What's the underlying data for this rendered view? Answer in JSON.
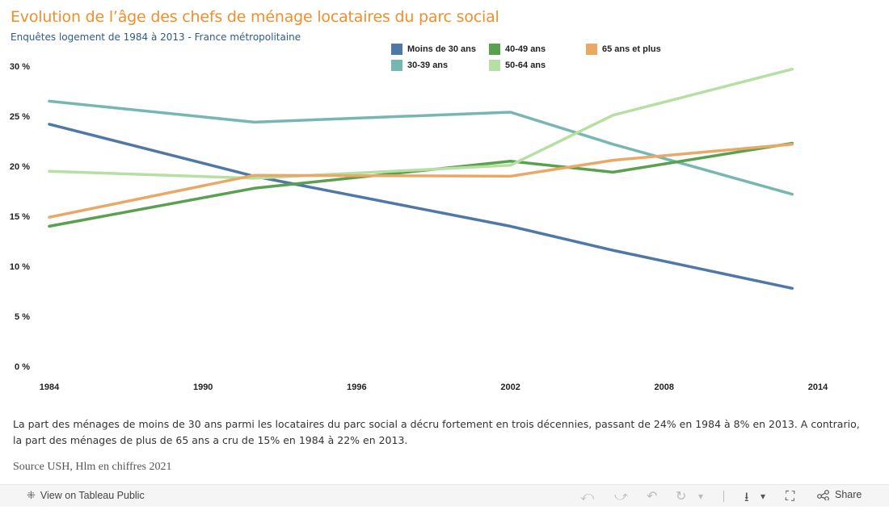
{
  "header": {
    "title": "Evolution de l’âge des chefs de ménage locataires du parc social",
    "subtitle": "Enquêtes logement de 1984 à 2013 - France métropolitaine"
  },
  "chart_data": {
    "type": "line",
    "title": "Evolution de l’âge des chefs de ménage locataires du parc social",
    "subtitle": "Enquêtes logement de 1984 à 2013 - France métropolitaine",
    "xlabel": "",
    "ylabel": "",
    "x": [
      1984,
      1992,
      2002,
      2006,
      2013
    ],
    "xlim": [
      1984,
      2014
    ],
    "ylim": [
      0,
      30
    ],
    "xticks": [
      "1984",
      "1990",
      "1996",
      "2002",
      "2008",
      "2014"
    ],
    "xtick_values": [
      1984,
      1990,
      1996,
      2002,
      2008,
      2014
    ],
    "yticks": [
      "0 %",
      "5 %",
      "10 %",
      "15 %",
      "20 %",
      "25 %",
      "30 %"
    ],
    "ytick_values": [
      0,
      5,
      10,
      15,
      20,
      25,
      30
    ],
    "grid": false,
    "legend_position": "top-right",
    "series": [
      {
        "name": "Moins de 30 ans",
        "color": "#4E79A7",
        "values": [
          24.2,
          19.0,
          14.0,
          11.6,
          7.8
        ]
      },
      {
        "name": "30-39 ans",
        "color": "#76B7B2",
        "values": [
          26.5,
          24.4,
          25.4,
          22.2,
          17.2
        ]
      },
      {
        "name": "40-49 ans",
        "color": "#59A14F",
        "values": [
          14.0,
          17.8,
          20.5,
          19.4,
          22.3
        ]
      },
      {
        "name": "50-64 ans",
        "color": "#B5DFA3",
        "values": [
          19.5,
          18.8,
          20.1,
          25.1,
          29.7
        ]
      },
      {
        "name": "65 ans et plus",
        "color": "#E9A866",
        "values": [
          14.9,
          19.1,
          19.0,
          20.6,
          22.2
        ]
      }
    ]
  },
  "legend": {
    "items": [
      {
        "label": "Moins de 30 ans",
        "color": "#4E79A7"
      },
      {
        "label": "40-49 ans",
        "color": "#59A14F"
      },
      {
        "label": "65 ans et plus",
        "color": "#E9A866"
      },
      {
        "label": "30-39 ans",
        "color": "#76B7B2"
      },
      {
        "label": "50-64 ans",
        "color": "#B5DFA3"
      }
    ]
  },
  "note": "La part des ménages de moins de 30 ans parmi les locataires du parc social a décru fortement en trois décennies, passant de 24% en 1984 à 8% en 2013. A contrario, la part des ménages de plus de 65 ans a cru de 15% en 1984 à 22% en 2013.",
  "source": "Source USH, Hlm en chiffres 2021",
  "footer": {
    "view_link": "View on Tableau Public",
    "tableau_icon": "tableau-logo-icon",
    "undo_icon": "⤺",
    "redo_icon": "⤻",
    "revert_icon": "↶",
    "refresh_icon": "↻",
    "dropdown_icon": "▾",
    "download_icon": "⭳",
    "fullscreen_icon": "⛶",
    "share_icon": "⮌",
    "share_label": "Share"
  }
}
